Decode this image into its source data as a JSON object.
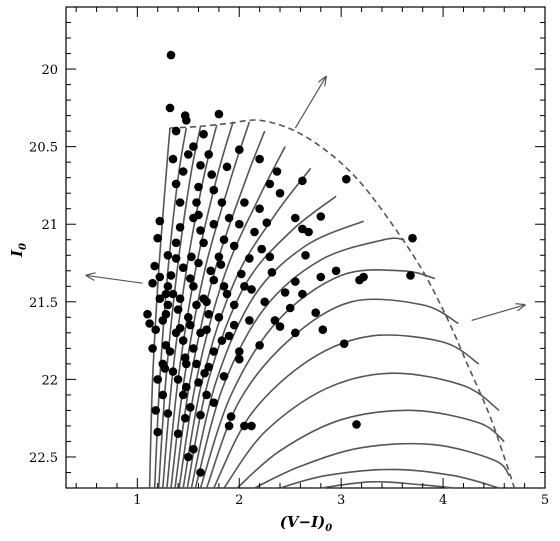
{
  "chart_data": {
    "type": "scatter",
    "title": "",
    "xlabel": "(V−I)",
    "xlabel_sub": "0",
    "ylabel": "I",
    "ylabel_sub": "0",
    "xlim": [
      0.3,
      5.0
    ],
    "ylim": [
      22.7,
      19.6
    ],
    "y_inverted": true,
    "xticks": [
      1,
      2,
      3,
      4,
      5
    ],
    "yticks": [
      20,
      20.5,
      21,
      21.5,
      22,
      22.5
    ],
    "ytick_labels": [
      "20",
      "20.5",
      "21",
      "21.5",
      "22",
      "22.5"
    ],
    "grid": false,
    "colors": {
      "points": "#000000",
      "curves": "#555555",
      "envelope": "#555555",
      "arrows": "#555555"
    },
    "points": [
      [
        1.33,
        19.91
      ],
      [
        1.32,
        20.25
      ],
      [
        1.47,
        20.3
      ],
      [
        1.48,
        20.33
      ],
      [
        1.8,
        20.29
      ],
      [
        1.38,
        20.4
      ],
      [
        1.65,
        20.42
      ],
      [
        1.55,
        20.5
      ],
      [
        1.7,
        20.55
      ],
      [
        1.62,
        20.62
      ],
      [
        1.45,
        20.66
      ],
      [
        1.73,
        20.68
      ],
      [
        1.38,
        20.74
      ],
      [
        2.0,
        20.52
      ],
      [
        2.2,
        20.58
      ],
      [
        2.37,
        20.66
      ],
      [
        2.3,
        20.74
      ],
      [
        2.4,
        20.8
      ],
      [
        2.62,
        20.72
      ],
      [
        1.42,
        20.86
      ],
      [
        1.58,
        20.86
      ],
      [
        1.83,
        20.86
      ],
      [
        2.05,
        20.86
      ],
      [
        1.22,
        20.98
      ],
      [
        1.55,
        20.96
      ],
      [
        1.75,
        21.0
      ],
      [
        2.0,
        21.0
      ],
      [
        2.27,
        20.99
      ],
      [
        2.55,
        20.96
      ],
      [
        2.8,
        20.95
      ],
      [
        3.05,
        20.71
      ],
      [
        1.2,
        21.09
      ],
      [
        1.38,
        21.12
      ],
      [
        1.65,
        21.12
      ],
      [
        1.95,
        21.14
      ],
      [
        2.22,
        21.16
      ],
      [
        2.62,
        21.03
      ],
      [
        1.3,
        21.2
      ],
      [
        1.53,
        21.21
      ],
      [
        1.8,
        21.21
      ],
      [
        2.1,
        21.22
      ],
      [
        2.65,
        21.2
      ],
      [
        3.7,
        21.09
      ],
      [
        1.17,
        21.27
      ],
      [
        1.45,
        21.28
      ],
      [
        1.72,
        21.3
      ],
      [
        2.02,
        21.32
      ],
      [
        2.32,
        21.31
      ],
      [
        2.55,
        21.37
      ],
      [
        2.8,
        21.34
      ],
      [
        3.22,
        21.34
      ],
      [
        3.68,
        21.33
      ],
      [
        1.15,
        21.38
      ],
      [
        1.3,
        21.4
      ],
      [
        1.55,
        21.4
      ],
      [
        1.85,
        21.4
      ],
      [
        2.12,
        21.42
      ],
      [
        2.45,
        21.44
      ],
      [
        3.18,
        21.36
      ],
      [
        1.22,
        21.48
      ],
      [
        1.42,
        21.48
      ],
      [
        1.68,
        21.5
      ],
      [
        1.95,
        21.52
      ],
      [
        2.25,
        21.5
      ],
      [
        2.5,
        21.54
      ],
      [
        2.75,
        21.57
      ],
      [
        1.1,
        21.58
      ],
      [
        1.28,
        21.58
      ],
      [
        1.5,
        21.6
      ],
      [
        1.8,
        21.6
      ],
      [
        2.1,
        21.62
      ],
      [
        2.4,
        21.66
      ],
      [
        1.18,
        21.68
      ],
      [
        1.38,
        21.7
      ],
      [
        1.62,
        21.7
      ],
      [
        1.9,
        21.72
      ],
      [
        2.55,
        21.7
      ],
      [
        2.82,
        21.68
      ],
      [
        1.15,
        21.8
      ],
      [
        1.32,
        21.82
      ],
      [
        1.55,
        21.8
      ],
      [
        1.75,
        21.82
      ],
      [
        2.0,
        21.82
      ],
      [
        2.2,
        21.78
      ],
      [
        3.03,
        21.77
      ],
      [
        1.25,
        21.9
      ],
      [
        1.48,
        21.9
      ],
      [
        1.7,
        21.92
      ],
      [
        2.0,
        21.87
      ],
      [
        1.2,
        22.0
      ],
      [
        1.4,
        22.0
      ],
      [
        1.6,
        22.02
      ],
      [
        1.85,
        21.98
      ],
      [
        1.25,
        22.1
      ],
      [
        1.45,
        22.1
      ],
      [
        1.68,
        22.1
      ],
      [
        1.52,
        22.18
      ],
      [
        1.18,
        22.2
      ],
      [
        1.3,
        22.22
      ],
      [
        1.47,
        22.25
      ],
      [
        1.92,
        22.24
      ],
      [
        1.62,
        22.23
      ],
      [
        2.05,
        22.3
      ],
      [
        2.12,
        22.3
      ],
      [
        1.9,
        22.3
      ],
      [
        1.2,
        22.34
      ],
      [
        3.15,
        22.29
      ],
      [
        1.4,
        22.35
      ],
      [
        1.55,
        22.45
      ],
      [
        1.5,
        22.5
      ],
      [
        1.62,
        22.6
      ],
      [
        1.35,
        21.45
      ],
      [
        1.25,
        21.62
      ],
      [
        1.4,
        21.55
      ],
      [
        1.45,
        21.75
      ],
      [
        1.33,
        21.33
      ],
      [
        1.6,
        21.25
      ],
      [
        1.52,
        21.35
      ],
      [
        1.3,
        21.52
      ],
      [
        1.65,
        21.48
      ],
      [
        1.75,
        21.36
      ],
      [
        1.85,
        21.1
      ],
      [
        1.42,
        21.02
      ],
      [
        1.6,
        20.76
      ],
      [
        1.75,
        20.78
      ],
      [
        1.88,
        20.63
      ],
      [
        1.5,
        20.55
      ],
      [
        1.35,
        20.58
      ],
      [
        1.6,
        20.94
      ],
      [
        1.9,
        20.96
      ],
      [
        1.7,
        21.58
      ],
      [
        1.58,
        21.9
      ],
      [
        1.35,
        21.95
      ],
      [
        1.48,
        22.05
      ],
      [
        1.75,
        22.15
      ],
      [
        1.42,
        21.67
      ],
      [
        1.28,
        21.78
      ],
      [
        2.3,
        21.21
      ],
      [
        2.15,
        21.05
      ],
      [
        1.95,
        21.65
      ],
      [
        2.62,
        21.45
      ],
      [
        2.95,
        21.3
      ],
      [
        1.58,
        21.52
      ],
      [
        1.83,
        21.75
      ],
      [
        1.22,
        21.34
      ],
      [
        1.52,
        21.65
      ],
      [
        1.68,
        21.68
      ],
      [
        1.88,
        21.45
      ],
      [
        2.05,
        21.4
      ],
      [
        1.38,
        21.22
      ],
      [
        1.62,
        21.04
      ],
      [
        1.82,
        21.26
      ],
      [
        1.28,
        21.45
      ],
      [
        1.47,
        21.86
      ],
      [
        1.66,
        21.96
      ],
      [
        1.12,
        21.64
      ],
      [
        1.27,
        21.93
      ],
      [
        2.35,
        21.62
      ],
      [
        2.2,
        20.9
      ],
      [
        2.68,
        21.05
      ]
    ],
    "isochrones": [
      [
        [
          1.12,
          22.7
        ],
        [
          1.15,
          22.0
        ],
        [
          1.21,
          21.3
        ],
        [
          1.28,
          20.7
        ],
        [
          1.32,
          20.38
        ]
      ],
      [
        [
          1.17,
          22.7
        ],
        [
          1.22,
          22.0
        ],
        [
          1.3,
          21.3
        ],
        [
          1.4,
          20.7
        ],
        [
          1.48,
          20.38
        ]
      ],
      [
        [
          1.21,
          22.7
        ],
        [
          1.28,
          22.0
        ],
        [
          1.39,
          21.3
        ],
        [
          1.52,
          20.7
        ],
        [
          1.62,
          20.37
        ]
      ],
      [
        [
          1.25,
          22.7
        ],
        [
          1.34,
          22.0
        ],
        [
          1.48,
          21.3
        ],
        [
          1.65,
          20.7
        ],
        [
          1.78,
          20.36
        ]
      ],
      [
        [
          1.29,
          22.7
        ],
        [
          1.4,
          22.0
        ],
        [
          1.57,
          21.3
        ],
        [
          1.78,
          20.7
        ],
        [
          1.94,
          20.34
        ]
      ],
      [
        [
          1.33,
          22.7
        ],
        [
          1.46,
          22.0
        ],
        [
          1.66,
          21.3
        ],
        [
          1.92,
          20.7
        ],
        [
          2.1,
          20.34
        ]
      ],
      [
        [
          1.37,
          22.7
        ],
        [
          1.52,
          22.0
        ],
        [
          1.76,
          21.3
        ],
        [
          2.06,
          20.72
        ],
        [
          2.25,
          20.4
        ]
      ],
      [
        [
          1.41,
          22.7
        ],
        [
          1.58,
          22.0
        ],
        [
          1.86,
          21.32
        ],
        [
          2.2,
          20.82
        ],
        [
          2.45,
          20.5
        ]
      ],
      [
        [
          1.45,
          22.7
        ],
        [
          1.64,
          22.0
        ],
        [
          1.96,
          21.36
        ],
        [
          2.35,
          20.94
        ],
        [
          2.7,
          20.64
        ]
      ],
      [
        [
          1.49,
          22.7
        ],
        [
          1.7,
          22.0
        ],
        [
          2.05,
          21.4
        ],
        [
          2.5,
          21.05
        ],
        [
          2.95,
          20.82
        ]
      ],
      [
        [
          1.53,
          22.7
        ],
        [
          1.77,
          22.02
        ],
        [
          2.15,
          21.46
        ],
        [
          2.65,
          21.14
        ],
        [
          3.22,
          20.98
        ]
      ],
      [
        [
          1.57,
          22.7
        ],
        [
          1.84,
          22.05
        ],
        [
          2.25,
          21.54
        ],
        [
          2.8,
          21.23
        ],
        [
          3.42,
          21.1
        ],
        [
          3.62,
          21.1
        ]
      ],
      [
        [
          1.62,
          22.7
        ],
        [
          1.92,
          22.1
        ],
        [
          2.38,
          21.62
        ],
        [
          3.0,
          21.33
        ],
        [
          3.6,
          21.3
        ],
        [
          3.92,
          21.35
        ]
      ],
      [
        [
          1.68,
          22.7
        ],
        [
          2.0,
          22.14
        ],
        [
          2.5,
          21.74
        ],
        [
          3.1,
          21.5
        ],
        [
          3.8,
          21.52
        ],
        [
          4.15,
          21.64
        ]
      ],
      [
        [
          1.75,
          22.7
        ],
        [
          2.12,
          22.22
        ],
        [
          2.7,
          21.87
        ],
        [
          3.3,
          21.72
        ],
        [
          4.0,
          21.76
        ],
        [
          4.35,
          21.9
        ]
      ],
      [
        [
          1.85,
          22.7
        ],
        [
          2.25,
          22.34
        ],
        [
          2.85,
          22.06
        ],
        [
          3.5,
          21.96
        ],
        [
          4.2,
          22.04
        ],
        [
          4.55,
          22.2
        ]
      ],
      [
        [
          1.98,
          22.7
        ],
        [
          2.4,
          22.46
        ],
        [
          3.0,
          22.26
        ],
        [
          3.7,
          22.2
        ],
        [
          4.35,
          22.28
        ],
        [
          4.6,
          22.4
        ]
      ],
      [
        [
          2.15,
          22.7
        ],
        [
          2.6,
          22.56
        ],
        [
          3.2,
          22.44
        ],
        [
          3.9,
          22.42
        ],
        [
          4.5,
          22.52
        ],
        [
          4.65,
          22.62
        ]
      ],
      [
        [
          2.4,
          22.7
        ],
        [
          2.85,
          22.62
        ],
        [
          3.5,
          22.58
        ],
        [
          4.1,
          22.62
        ],
        [
          4.55,
          22.7
        ]
      ],
      [
        [
          2.8,
          22.7
        ],
        [
          3.3,
          22.66
        ],
        [
          3.8,
          22.68
        ],
        [
          4.1,
          22.7
        ]
      ]
    ],
    "envelope": [
      [
        1.32,
        20.38
      ],
      [
        1.6,
        20.37
      ],
      [
        1.9,
        20.35
      ],
      [
        2.2,
        20.33
      ],
      [
        2.55,
        20.4
      ],
      [
        2.9,
        20.55
      ],
      [
        3.2,
        20.74
      ],
      [
        3.5,
        21.0
      ],
      [
        3.8,
        21.3
      ],
      [
        4.05,
        21.62
      ],
      [
        4.25,
        21.92
      ],
      [
        4.45,
        22.22
      ],
      [
        4.6,
        22.5
      ],
      [
        4.7,
        22.7
      ]
    ],
    "arrows": [
      {
        "from": [
          2.55,
          20.38
        ],
        "to": [
          2.85,
          20.05
        ]
      },
      {
        "from": [
          1.05,
          21.38
        ],
        "to": [
          0.5,
          21.33
        ]
      },
      {
        "from": [
          4.28,
          21.62
        ],
        "to": [
          4.8,
          21.52
        ]
      }
    ]
  }
}
